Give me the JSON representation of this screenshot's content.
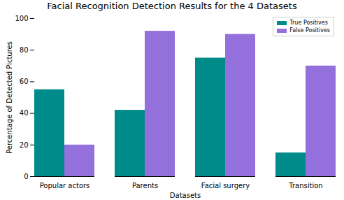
{
  "chart_data": {
    "type": "bar",
    "title": "Facial Recognition Detection Results for the 4 Datasets",
    "x_label": "Datasets",
    "y_label": "Percentage of Detected Pictures",
    "categories": [
      "Popular actors",
      "Parents",
      "Facial surgery",
      "Transition"
    ],
    "series": [
      {
        "name": "True Positives",
        "color": "#008b8b",
        "values": [
          55,
          42,
          75,
          15
        ]
      },
      {
        "name": "False Positives",
        "color": "#9370db",
        "values": [
          20,
          92,
          90,
          70
        ]
      }
    ],
    "ylim": [
      0,
      100
    ],
    "yticks": [
      0,
      20,
      40,
      60,
      80,
      100
    ],
    "grid": false,
    "legend": "upper right"
  }
}
